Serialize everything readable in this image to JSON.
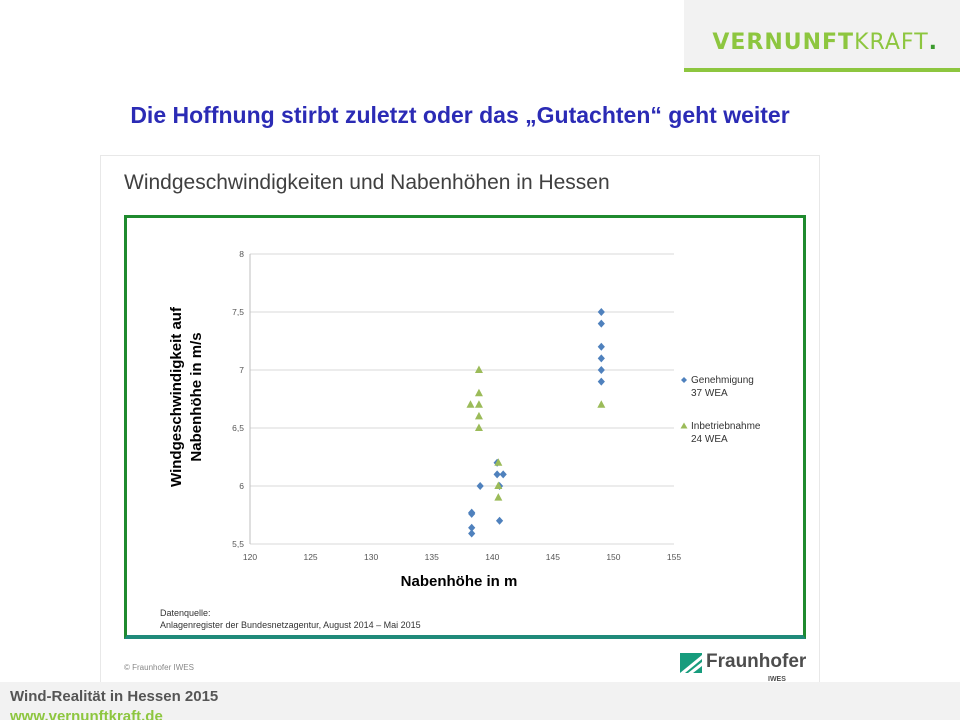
{
  "brand": {
    "part1": "VERNUNFT",
    "part2": "KRAFT",
    "dot": "."
  },
  "slide_title": "Die Hoffnung stirbt zuletzt oder das „Gutachten“ geht weiter",
  "figure": {
    "title": "Windgeschwindigkeiten und Nabenhöhen in Hessen",
    "source_line1": "Datenquelle:",
    "source_line2": "Anlagenregister der Bundesnetzagentur, August 2014 – Mai 2015",
    "copyright": "© Fraunhofer IWES",
    "org_name": "Fraunhofer",
    "org_sub": "IWES"
  },
  "chart_data": {
    "type": "scatter",
    "xlabel": "Nabenhöhe in m",
    "ylabel_line1": "Windgeschwindigkeit auf",
    "ylabel_line2": "Nabenhöhe in m/s",
    "xlim": [
      120,
      155
    ],
    "ylim": [
      5.5,
      8
    ],
    "x_ticks": [
      "120",
      "125",
      "130",
      "135",
      "140",
      "145",
      "150",
      "155"
    ],
    "y_ticks": [
      "5,5",
      "6",
      "6,5",
      "7",
      "7,5",
      "8"
    ],
    "grid": "horizontal",
    "legend_position": "right",
    "series": [
      {
        "name": "Genehmigung",
        "name2": "37 WEA",
        "marker": "diamond",
        "color": "#4f81bd",
        "points": [
          [
            138.3,
            5.77
          ],
          [
            138.3,
            5.76
          ],
          [
            138.3,
            5.64
          ],
          [
            138.3,
            5.59
          ],
          [
            139.0,
            6.0
          ],
          [
            140.4,
            6.2
          ],
          [
            140.4,
            6.1
          ],
          [
            140.9,
            6.1
          ],
          [
            140.6,
            6.0
          ],
          [
            140.6,
            5.7
          ],
          [
            149.0,
            7.5
          ],
          [
            149.0,
            7.4
          ],
          [
            149.0,
            7.2
          ],
          [
            149.0,
            7.1
          ],
          [
            149.0,
            7.0
          ],
          [
            149.0,
            6.9
          ]
        ]
      },
      {
        "name": "Inbetriebnahme",
        "name2": "24 WEA",
        "marker": "triangle",
        "color": "#9bbb59",
        "points": [
          [
            138.9,
            7.0
          ],
          [
            138.9,
            6.8
          ],
          [
            138.2,
            6.7
          ],
          [
            138.9,
            6.7
          ],
          [
            138.9,
            6.6
          ],
          [
            138.9,
            6.5
          ],
          [
            140.5,
            6.2
          ],
          [
            140.5,
            6.0
          ],
          [
            140.5,
            5.9
          ],
          [
            149.0,
            6.7
          ]
        ]
      }
    ]
  },
  "footer": {
    "line1": "Wind-Realität in Hessen 2015",
    "line2": "www.vernunftkraft.de"
  },
  "colors": {
    "brand_green": "#8dc63f",
    "title_blue": "#2b2bb5",
    "frame_green": "#1f8a2e"
  }
}
